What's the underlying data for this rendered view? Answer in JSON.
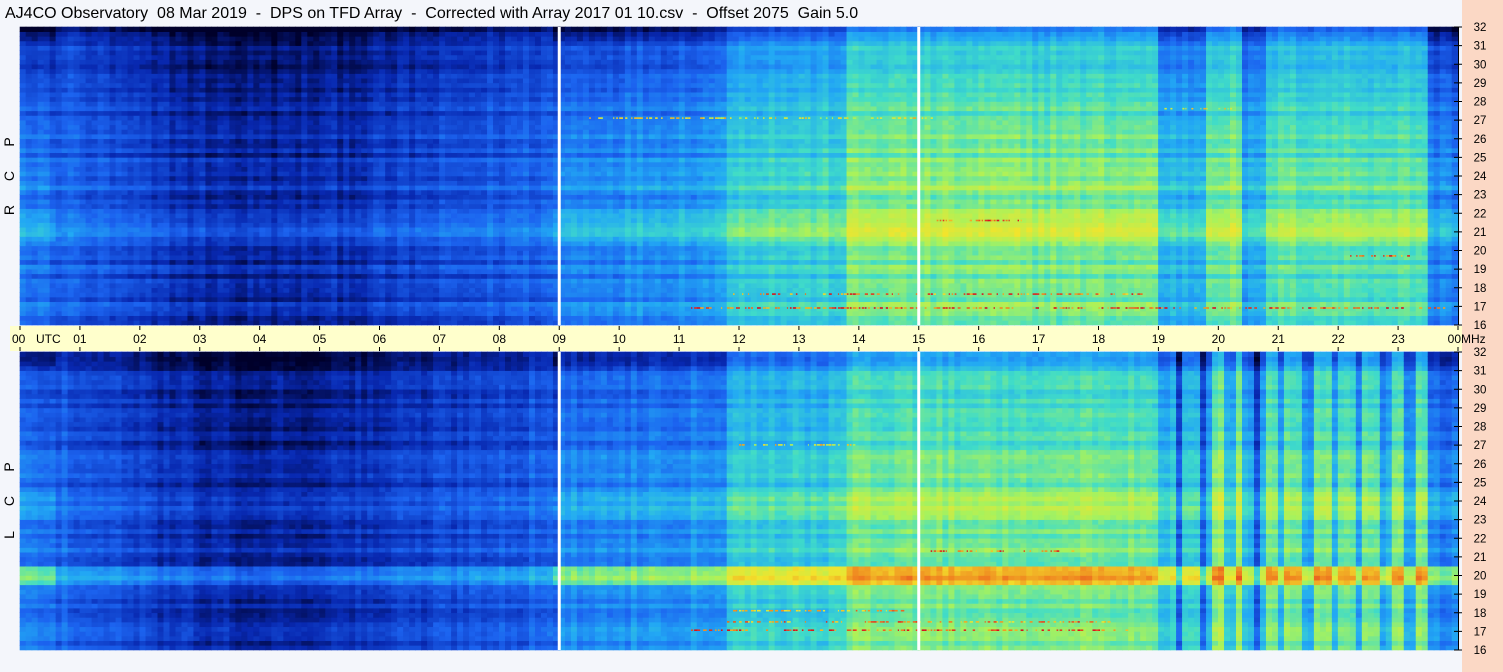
{
  "title": "AJ4CO Observatory  08 Mar 2019  -  DPS on TFD Array  -  Corrected with Array 2017 01 10.csv  -  Offset 2075  Gain 5.0",
  "chart_data": {
    "type": "heatmap",
    "title": "AJ4CO Observatory  08 Mar 2019  -  DPS on TFD Array  -  Corrected with Array 2017 01 10.csv  -  Offset 2075  Gain 5.0",
    "xlabel": "UTC",
    "ylabel": "MHz",
    "x_ticks": [
      "00",
      "01",
      "02",
      "03",
      "04",
      "05",
      "06",
      "07",
      "08",
      "09",
      "10",
      "11",
      "12",
      "13",
      "14",
      "15",
      "16",
      "17",
      "18",
      "19",
      "20",
      "21",
      "22",
      "23",
      "00"
    ],
    "xlim_hours": [
      0,
      24
    ],
    "y_ticks": [
      16,
      17,
      18,
      19,
      20,
      21,
      22,
      23,
      24,
      25,
      26,
      27,
      28,
      29,
      30,
      31,
      32
    ],
    "ylim_mhz": [
      16,
      32
    ],
    "marker_hours": [
      9,
      15
    ],
    "panels": [
      {
        "name": "RCP",
        "letters": [
          "P",
          "C",
          "R"
        ]
      },
      {
        "name": "LCP",
        "letters": [
          "P",
          "C",
          "L"
        ]
      }
    ],
    "colormap": [
      "#00002a",
      "#0828b0",
      "#1c64f0",
      "#22a8f4",
      "#40dcc8",
      "#a8f25c",
      "#f2e42c",
      "#f08420",
      "#d81020"
    ]
  },
  "colors": {
    "axis_band": "#ffffcc",
    "right_strip": "#fbd8c5",
    "marker_line": "#ffffff"
  }
}
